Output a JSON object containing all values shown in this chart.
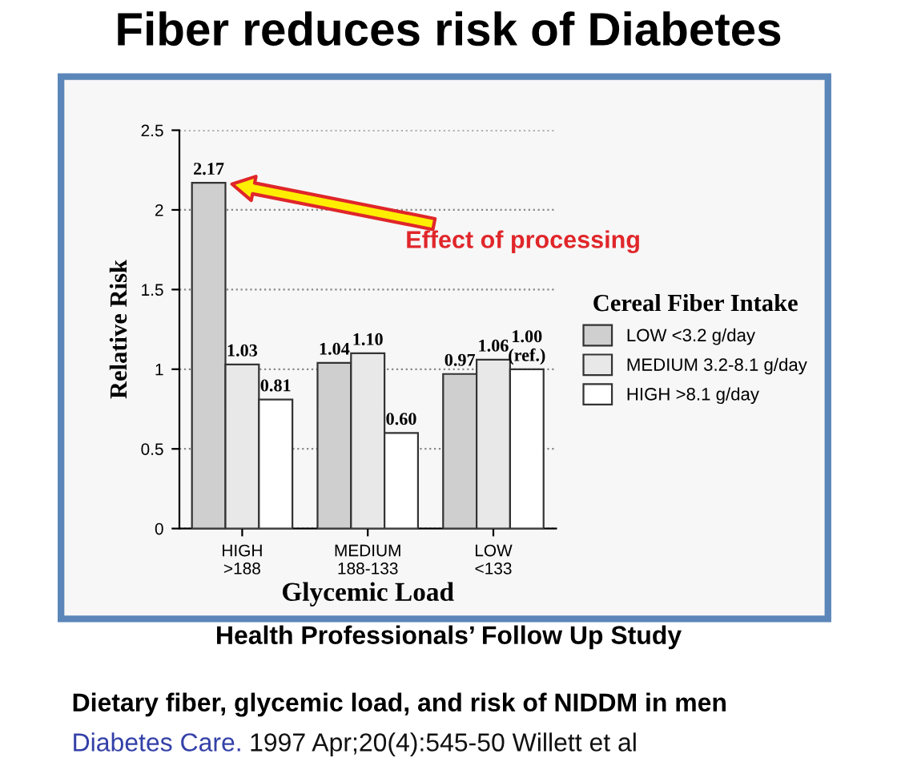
{
  "chart_data": {
    "type": "bar",
    "title": "Fiber reduces risk of Diabetes",
    "xlabel": "Glycemic Load",
    "ylabel": "Relative Risk",
    "legend_title": "Cereal Fiber Intake",
    "categories": [
      "HIGH\n>188",
      "MEDIUM\n188-133",
      "LOW\n<133"
    ],
    "series": [
      {
        "name": "LOW <3.2 g/day",
        "color": "#cfcfcf",
        "values": [
          2.17,
          1.04,
          0.97
        ],
        "value_labels": [
          "2.17",
          "1.04",
          "0.97"
        ]
      },
      {
        "name": "MEDIUM 3.2-8.1 g/day",
        "color": "#e8e8e8",
        "values": [
          1.03,
          1.1,
          1.06
        ],
        "value_labels": [
          "1.03",
          "1.10",
          "1.06"
        ]
      },
      {
        "name": "HIGH >8.1 g/day",
        "color": "#ffffff",
        "values": [
          0.81,
          0.6,
          1.0
        ],
        "value_labels": [
          "0.81",
          "0.60",
          "1.00\n(ref.)"
        ]
      }
    ],
    "ylim": [
      0,
      2.5
    ],
    "yticks": [
      0,
      0.5,
      1,
      1.5,
      2,
      2.5
    ],
    "grid": "y",
    "legend": "right",
    "annotations": [
      "Effect of processing",
      "Health Professionals’ Follow Up Study",
      "Dietary fiber, glycemic load, and risk of NIDDM in men",
      "Diabetes Care.",
      "1997 Apr;20(4):545-50 Willett et al"
    ]
  }
}
